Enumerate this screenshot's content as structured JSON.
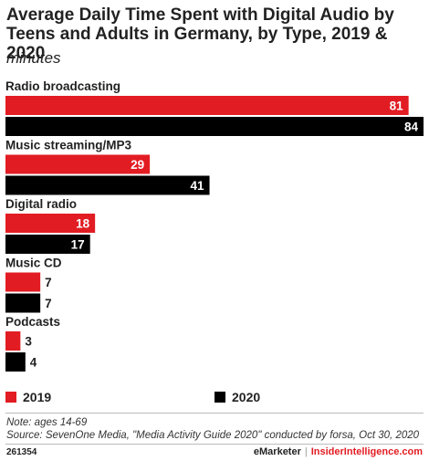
{
  "colors": {
    "series_2019": "#e21c23",
    "series_2020": "#000000"
  },
  "footer": {
    "note": "Note: ages 14-69",
    "source": "Source: SevenOne Media, \"Media Activity Guide 2020\" conducted by forsa, Oct 30, 2020",
    "chart_id": "261354",
    "brand_left": "eMarketer",
    "brand_sep": "|",
    "brand_right": "InsiderIntelligence.com"
  },
  "chart_data": {
    "type": "bar",
    "orientation": "horizontal",
    "title": "Average Daily Time Spent with Digital Audio by Teens and Adults in Germany, by Type, 2019 & 2020",
    "subtitle": "minutes",
    "categories": [
      "Radio broadcasting",
      "Music streaming/MP3",
      "Digital radio",
      "Music CD",
      "Podcasts"
    ],
    "series": [
      {
        "name": "2019",
        "values": [
          81,
          29,
          18,
          7,
          3
        ]
      },
      {
        "name": "2020",
        "values": [
          84,
          41,
          17,
          7,
          4
        ]
      }
    ],
    "xlim": [
      0,
      84
    ],
    "legend": "bottom",
    "grid": false
  }
}
